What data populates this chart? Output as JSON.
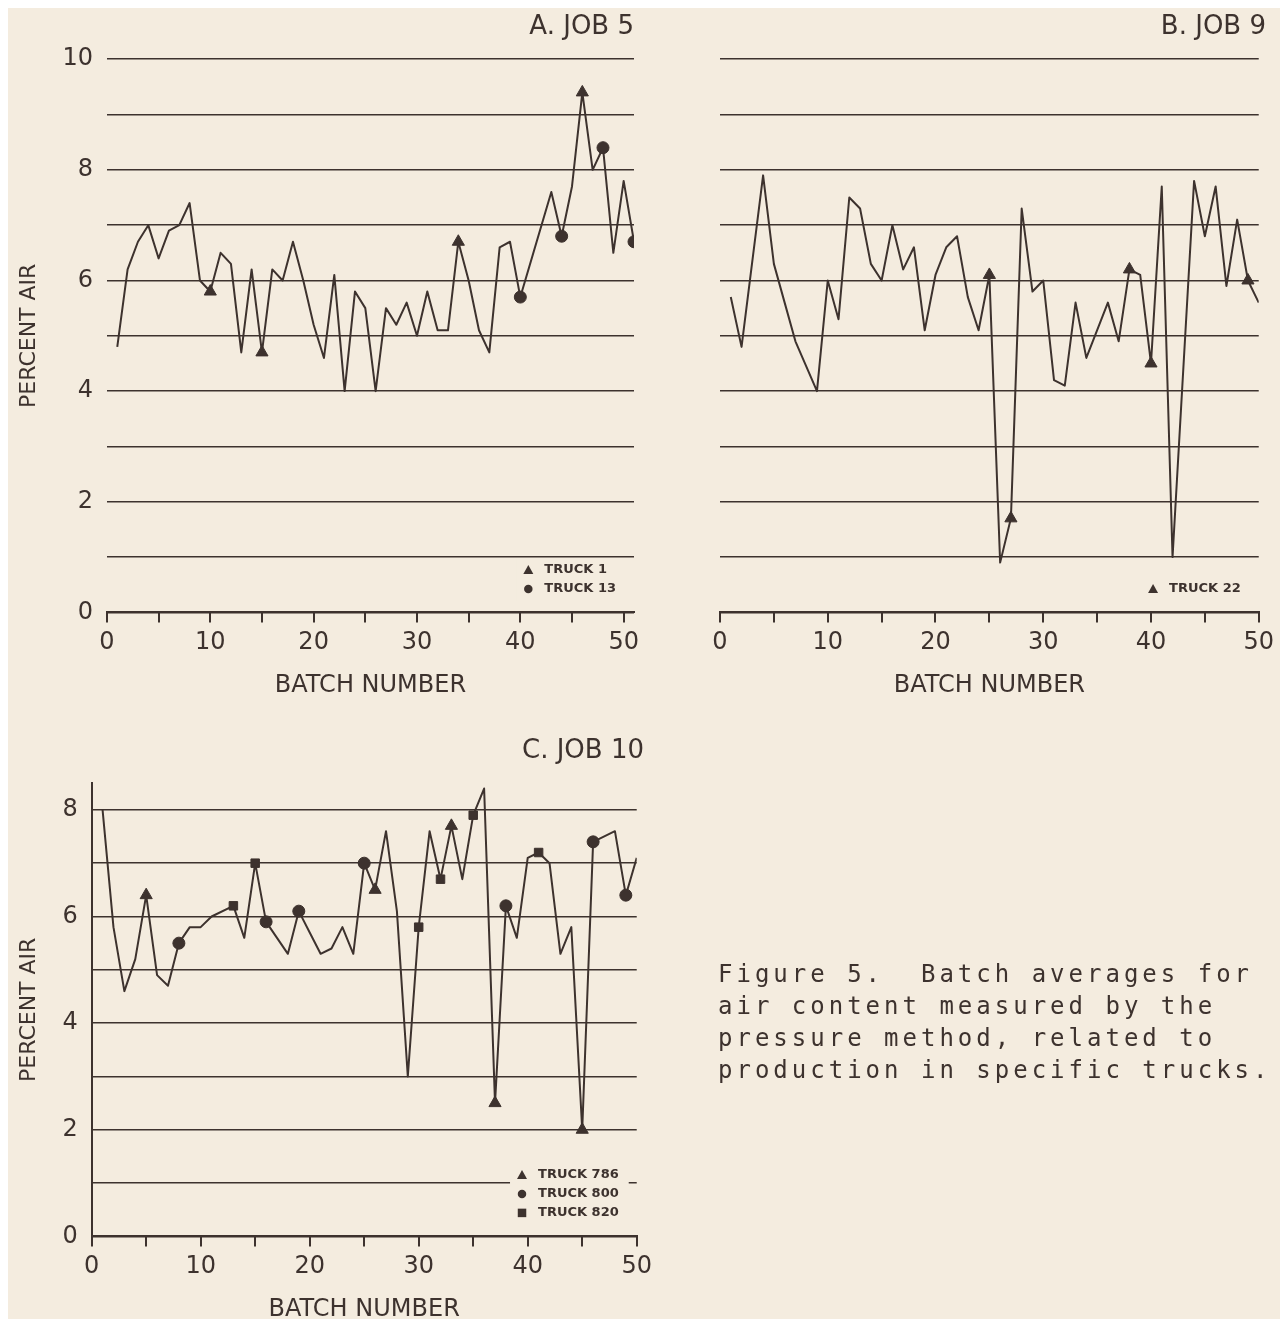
{
  "chart_data": [
    {
      "type": "line",
      "title": "A. JOB 5",
      "xlabel": "BATCH NUMBER",
      "ylabel": "PERCENT AIR",
      "xlim": [
        0,
        51
      ],
      "xticks": [
        0,
        {
          "value": 5,
          "label": null
        },
        10,
        {
          "value": 15,
          "label": null
        },
        20,
        {
          "value": 25,
          "label": null
        },
        30,
        {
          "value": 35,
          "label": null
        },
        40,
        {
          "value": 45,
          "label": null
        },
        50
      ],
      "ylim": [
        0,
        10
      ],
      "yticks": [
        0,
        {
          "value": 1,
          "label": null
        },
        2,
        {
          "value": 3,
          "label": null
        },
        4,
        {
          "value": 5,
          "label": null
        },
        6,
        {
          "value": 7,
          "label": null
        },
        8,
        {
          "value": 9,
          "label": null
        },
        10
      ],
      "grid": "y",
      "legend": "bottom right",
      "series": [
        {
          "color": "#3d322e",
          "x": [
            1,
            2,
            3,
            4,
            5,
            6,
            7,
            8,
            9,
            10,
            11,
            12,
            13,
            14,
            15,
            16,
            17,
            18,
            19,
            20,
            21,
            22,
            23,
            24,
            25,
            26,
            27,
            28,
            29,
            30,
            31,
            32,
            33,
            34,
            35,
            36,
            37,
            38,
            39,
            40,
            43,
            44,
            45,
            46,
            47,
            48,
            49,
            50,
            51
          ],
          "values": [
            4.8,
            6.2,
            6.7,
            7.0,
            6.4,
            6.9,
            7.0,
            7.4,
            6.0,
            5.8,
            6.5,
            6.3,
            4.7,
            6.2,
            4.7,
            6.2,
            6.0,
            6.7,
            6.0,
            5.2,
            4.6,
            6.1,
            4.0,
            5.8,
            5.5,
            4.0,
            5.5,
            5.2,
            5.6,
            5.0,
            5.8,
            5.1,
            5.1,
            6.7,
            6.0,
            5.1,
            4.7,
            6.6,
            6.7,
            5.7,
            7.6,
            6.8,
            7.7,
            9.4,
            8.0,
            8.4,
            6.5,
            7.8,
            6.7
          ]
        },
        {
          "type": "scatter",
          "name": "TRUCK 1",
          "marker": "triangle",
          "color": "#3d322e",
          "x": [
            10,
            15,
            34,
            46
          ],
          "values": [
            5.8,
            4.7,
            6.7,
            9.4
          ]
        },
        {
          "type": "scatter",
          "name": "TRUCK 13",
          "marker": "circle",
          "color": "#3d322e",
          "x": [
            40,
            44,
            48,
            51
          ],
          "values": [
            5.7,
            6.8,
            8.4,
            6.7
          ]
        }
      ]
    },
    {
      "type": "line",
      "title": "B. JOB 9",
      "xlabel": "BATCH NUMBER",
      "xlim": [
        0,
        50
      ],
      "xticks": [
        0,
        {
          "value": 5,
          "label": null
        },
        10,
        {
          "value": 15,
          "label": null
        },
        20,
        {
          "value": 25,
          "label": null
        },
        30,
        {
          "value": 35,
          "label": null
        },
        40,
        {
          "value": 45,
          "label": null
        },
        50
      ],
      "ylim": [
        0,
        10
      ],
      "yticks": [
        0,
        1,
        2,
        3,
        4,
        5,
        6,
        7,
        8,
        9,
        10
      ],
      "grid": "y",
      "legend": "bottom right",
      "tick_labels": "x",
      "series": [
        {
          "color": "#3d322e",
          "x": [
            1,
            2,
            4,
            5,
            6,
            7,
            9,
            10,
            11,
            12,
            13,
            14,
            15,
            16,
            17,
            18,
            19,
            20,
            21,
            22,
            23,
            24,
            25,
            26,
            27,
            28,
            29,
            30,
            31,
            32,
            33,
            34,
            36,
            37,
            38,
            39,
            40,
            41,
            42,
            44,
            45,
            46,
            47,
            48,
            49,
            50
          ],
          "values": [
            5.7,
            4.8,
            7.9,
            6.3,
            5.6,
            4.9,
            4.0,
            6.0,
            5.3,
            7.5,
            7.3,
            6.3,
            6.0,
            7.0,
            6.2,
            6.6,
            5.1,
            6.1,
            6.6,
            6.8,
            5.7,
            5.1,
            6.1,
            0.9,
            1.7,
            7.3,
            5.8,
            6.0,
            4.2,
            4.1,
            5.6,
            4.6,
            5.6,
            4.9,
            6.2,
            6.1,
            4.5,
            7.7,
            1.0,
            7.8,
            6.8,
            7.7,
            5.9,
            7.1,
            6.0,
            5.6
          ]
        },
        {
          "type": "scatter",
          "name": "TRUCK 22",
          "marker": "triangle",
          "color": "#3d322e",
          "x": [
            25,
            27,
            38,
            40,
            49
          ],
          "values": [
            6.1,
            1.7,
            6.2,
            4.5,
            6.0
          ]
        }
      ]
    },
    {
      "type": "line",
      "title": "C. JOB 10",
      "xlabel": "BATCH NUMBER",
      "ylabel": "PERCENT AIR",
      "xlim": [
        0,
        50
      ],
      "xticks": [
        0,
        {
          "value": 5,
          "label": null
        },
        10,
        {
          "value": 15,
          "label": null
        },
        20,
        {
          "value": 25,
          "label": null
        },
        30,
        {
          "value": 35,
          "label": null
        },
        40,
        {
          "value": 45,
          "label": null
        },
        50
      ],
      "ylim": [
        0,
        8.5
      ],
      "yticks": [
        0,
        {
          "value": 1,
          "label": null
        },
        2,
        {
          "value": 3,
          "label": null
        },
        4,
        {
          "value": 5,
          "label": null
        },
        6,
        {
          "value": 7,
          "label": null
        },
        8
      ],
      "grid": "y",
      "legend": "bottom right",
      "annotations": [
        "Figure 5.  Batch averages for air content measured by the pressure method, related to production in specific trucks."
      ],
      "series": [
        {
          "color": "#3d322e",
          "x": [
            1,
            2,
            3,
            4,
            5,
            6,
            7,
            8,
            9,
            10,
            11,
            13,
            14,
            15,
            16,
            17,
            18,
            19,
            20,
            21,
            22,
            23,
            24,
            25,
            26,
            27,
            28,
            29,
            30,
            31,
            32,
            33,
            34,
            35,
            36,
            37,
            38,
            39,
            40,
            41,
            42,
            43,
            44,
            45,
            46,
            48,
            49,
            50
          ],
          "values": [
            8.0,
            5.8,
            4.6,
            5.2,
            6.4,
            4.9,
            4.7,
            5.5,
            5.8,
            5.8,
            6.0,
            6.2,
            5.6,
            7.0,
            5.9,
            5.6,
            5.3,
            6.1,
            5.7,
            5.3,
            5.4,
            5.8,
            5.3,
            7.0,
            6.5,
            7.6,
            6.1,
            3.0,
            5.8,
            7.6,
            6.7,
            7.7,
            6.7,
            7.9,
            8.4,
            2.5,
            6.2,
            5.6,
            7.1,
            7.2,
            7.0,
            5.3,
            5.8,
            2.0,
            7.4,
            7.6,
            6.4,
            7.1
          ]
        },
        {
          "type": "scatter",
          "name": "TRUCK 786",
          "marker": "triangle",
          "color": "#3d322e",
          "x": [
            5,
            26,
            33,
            37,
            45
          ],
          "values": [
            6.4,
            6.5,
            7.7,
            2.5,
            2.0
          ]
        },
        {
          "type": "scatter",
          "name": "TRUCK 800",
          "marker": "circle",
          "color": "#3d322e",
          "x": [
            8,
            16,
            19,
            25,
            38,
            46,
            49
          ],
          "values": [
            5.5,
            5.9,
            6.1,
            7.0,
            6.2,
            7.4,
            6.4
          ]
        },
        {
          "type": "scatter",
          "name": "TRUCK 820",
          "marker": "square",
          "color": "#3d322e",
          "x": [
            13,
            15,
            30,
            32,
            35,
            41
          ],
          "values": [
            6.2,
            7.0,
            5.8,
            6.7,
            7.9,
            7.2
          ]
        }
      ]
    }
  ]
}
